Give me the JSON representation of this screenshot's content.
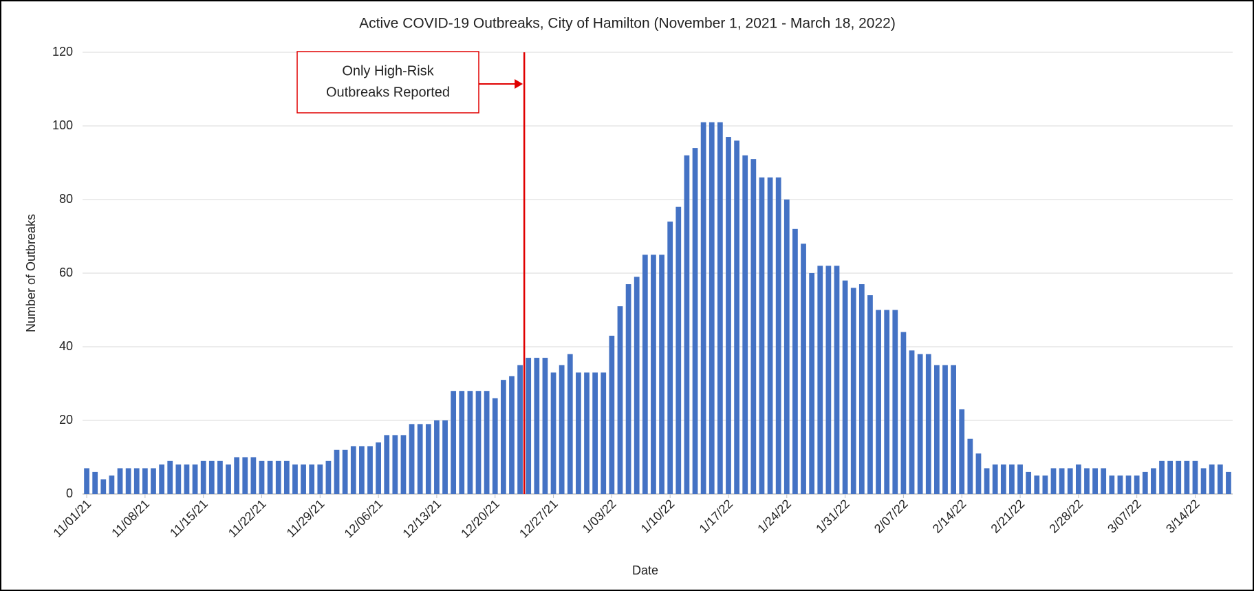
{
  "chart_data": {
    "type": "bar",
    "title": "Active COVID-19 Outbreaks, City of Hamilton (November 1, 2021 - March 18, 2022)",
    "x_label": "Date",
    "y_label": "Number of Outbreaks",
    "annotation": [
      "Only High-Risk",
      "Outbreaks Reported"
    ],
    "categories": [
      "11/01/21",
      null,
      null,
      null,
      null,
      null,
      null,
      "11/08/21",
      null,
      null,
      null,
      null,
      null,
      null,
      "11/15/21",
      null,
      null,
      null,
      null,
      null,
      null,
      "11/22/21",
      null,
      null,
      null,
      null,
      null,
      null,
      "11/29/21",
      null,
      null,
      null,
      null,
      null,
      null,
      "12/06/21",
      null,
      null,
      null,
      null,
      null,
      null,
      "12/13/21",
      null,
      null,
      null,
      null,
      null,
      null,
      "12/20/21",
      null,
      null,
      null,
      null,
      null,
      null,
      "12/27/21",
      null,
      null,
      null,
      null,
      null,
      null,
      "1/03/22",
      null,
      null,
      null,
      null,
      null,
      null,
      "1/10/22",
      null,
      null,
      null,
      null,
      null,
      null,
      "1/17/22",
      null,
      null,
      null,
      null,
      null,
      null,
      "1/24/22",
      null,
      null,
      null,
      null,
      null,
      null,
      "1/31/22",
      null,
      null,
      null,
      null,
      null,
      null,
      "2/07/22",
      null,
      null,
      null,
      null,
      null,
      null,
      "2/14/22",
      null,
      null,
      null,
      null,
      null,
      null,
      "2/21/22",
      null,
      null,
      null,
      null,
      null,
      null,
      "2/28/22",
      null,
      null,
      null,
      null,
      null,
      null,
      "3/07/22",
      null,
      null,
      null,
      null,
      null,
      null,
      "3/14/22",
      null,
      null,
      null,
      null
    ],
    "values": [
      7,
      6,
      4,
      5,
      7,
      7,
      7,
      7,
      7,
      8,
      9,
      8,
      8,
      8,
      9,
      9,
      9,
      8,
      10,
      10,
      10,
      9,
      9,
      9,
      9,
      8,
      8,
      8,
      8,
      9,
      12,
      12,
      13,
      13,
      13,
      14,
      16,
      16,
      16,
      19,
      19,
      19,
      20,
      20,
      28,
      28,
      28,
      28,
      28,
      26,
      31,
      32,
      35,
      37,
      37,
      37,
      33,
      35,
      38,
      33,
      33,
      33,
      33,
      43,
      51,
      57,
      59,
      65,
      65,
      65,
      74,
      78,
      92,
      94,
      101,
      101,
      101,
      97,
      96,
      92,
      91,
      86,
      86,
      86,
      80,
      72,
      68,
      60,
      62,
      62,
      62,
      58,
      56,
      57,
      54,
      50,
      50,
      50,
      44,
      39,
      38,
      38,
      35,
      35,
      35,
      23,
      15,
      11,
      7,
      8,
      8,
      8,
      8,
      6,
      5,
      5,
      7,
      7,
      7,
      8,
      7,
      7,
      7,
      5,
      5,
      5,
      5,
      6,
      7,
      9,
      9,
      9,
      9,
      9,
      7,
      8,
      8,
      6
    ],
    "color": "#4472c4",
    "ylim": [
      0,
      120
    ],
    "yticks": [
      0,
      20,
      40,
      60,
      80,
      100,
      120
    ],
    "grid": true
  }
}
